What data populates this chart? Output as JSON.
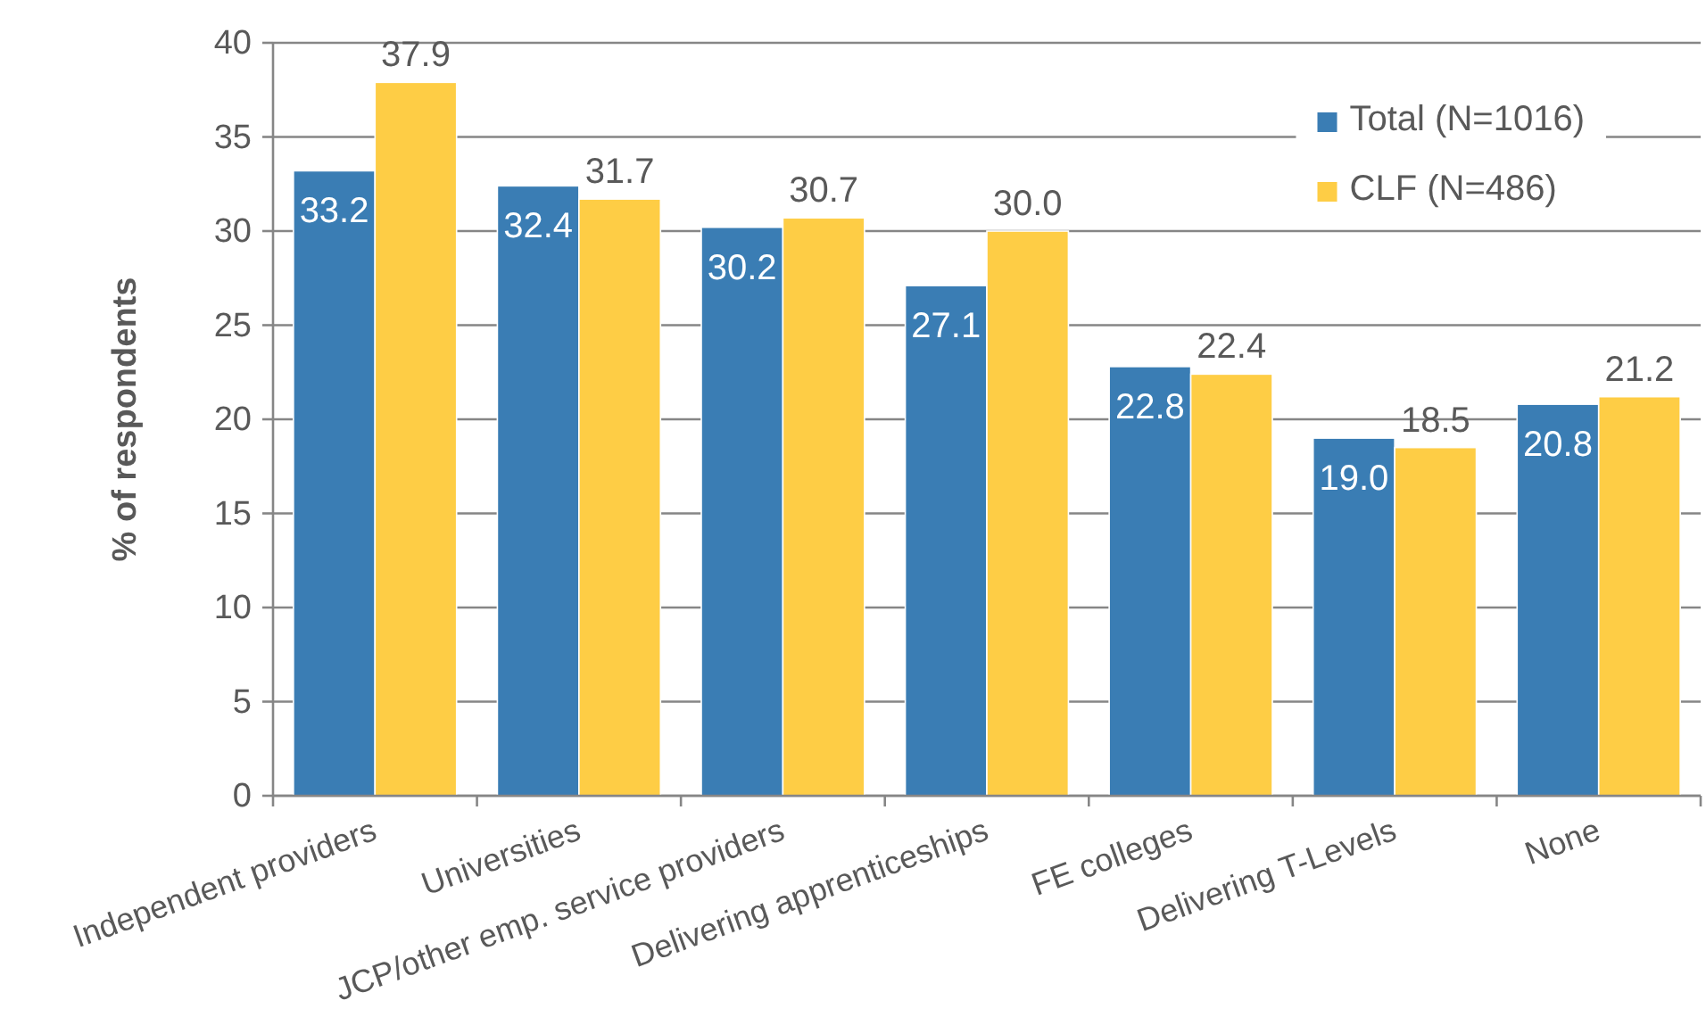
{
  "chart_data": {
    "type": "bar",
    "ylabel": "% of respondents",
    "categories": [
      "Independent providers",
      "Universities",
      "JCP/other emp. service providers",
      "Delivering apprenticeships",
      "FE colleges",
      "Delivering T-Levels",
      "None"
    ],
    "series": [
      {
        "name": "Total (N=1016)",
        "color": "#3a7db4",
        "values": [
          33.2,
          32.4,
          30.2,
          27.1,
          22.8,
          19.0,
          20.8
        ],
        "value_labels": [
          "33.2",
          "32.4",
          "30.2",
          "27.1",
          "22.8",
          "19.0",
          "20.8"
        ]
      },
      {
        "name": "CLF (N=486)",
        "color": "#fecd45",
        "values": [
          37.9,
          31.7,
          30.7,
          30.0,
          22.4,
          18.5,
          21.2
        ],
        "value_labels": [
          "37.9",
          "31.7",
          "30.7",
          "30.0",
          "22.4",
          "18.5",
          "21.2"
        ]
      }
    ],
    "ylim": [
      0,
      40
    ],
    "yticks": [
      0,
      5,
      10,
      15,
      20,
      25,
      30,
      35,
      40
    ],
    "grid": "y",
    "legend": "top right"
  }
}
